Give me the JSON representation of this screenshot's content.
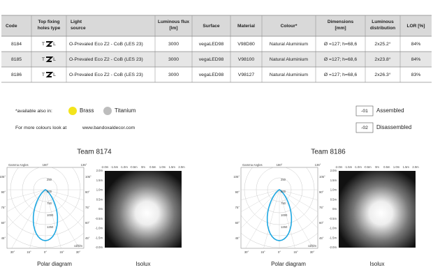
{
  "table": {
    "headers": [
      "Code",
      "Top fixing holes type",
      "Light source",
      "Luminous flux [lm]",
      "Surface",
      "Material",
      "Colour*",
      "Dimensions [mm]",
      "Luminous distribution",
      "LOR [%]"
    ],
    "rows": [
      {
        "code": "8184",
        "fixing": [
          "T",
          "L"
        ],
        "light_source": "O-Prevaled Eco Z2 - CoB (LES 23)",
        "flux": "3000",
        "surface": "vegaLED98",
        "material": "V98D80",
        "colour": "Natural Aluminium",
        "dimensions": "Ø =127; h=68,6",
        "distribution": "2x25.2°",
        "lor": "84%"
      },
      {
        "code": "8185",
        "fixing": [
          "T",
          "L"
        ],
        "light_source": "O-Prevaled Eco Z2 - CoB (LES 23)",
        "flux": "3000",
        "surface": "vegaLED98",
        "material": "V98100",
        "colour": "Natural Aluminium",
        "dimensions": "Ø =127; h=68,6",
        "distribution": "2x23.8°",
        "lor": "84%"
      },
      {
        "code": "8186",
        "fixing": [
          "T",
          "L"
        ],
        "light_source": "O-Prevaled Eco Z2 - CoB (LES 23)",
        "flux": "3000",
        "surface": "vegaLED98",
        "material": "V98127",
        "colour": "Natural Aluminium",
        "dimensions": "Ø =127; h=68,6",
        "distribution": "2x26.3°",
        "lor": "83%"
      }
    ]
  },
  "availability": {
    "label": "*available also in:",
    "options": [
      {
        "name": "Brass",
        "color": "#f3e41c"
      },
      {
        "name": "Titanium",
        "color": "#bdbdbd"
      }
    ]
  },
  "more": {
    "text": "For more colours look at",
    "link": "www.bandoxaldecor.com"
  },
  "versions": [
    {
      "code": "-01",
      "label": "Assembled"
    },
    {
      "code": "-02",
      "label": "Disassembled"
    }
  ],
  "diagrams": [
    {
      "title": "Team 8174",
      "polar": {
        "caption": "Polar diagram",
        "header": [
          "Gamma Angles",
          "180°",
          "135°"
        ],
        "left_angles": [
          "105°",
          "90°",
          "75°",
          "60°",
          "45°"
        ],
        "right_angles": [
          "105°",
          "90°",
          "75°",
          "60°",
          "45°"
        ],
        "bottom_angles": [
          "30°",
          "15°",
          "0°",
          "15°",
          "30°"
        ],
        "radial": [
          "250",
          "500",
          "750",
          "1000",
          "1250"
        ],
        "unit": "cd/klm"
      },
      "isolux": {
        "caption": "Isolux",
        "x_labels": [
          "-2.0m",
          "-1.5m",
          "-1.0m",
          "-0.5m",
          "0m",
          "0.5m",
          "1.0m",
          "1.5m",
          "2.0m"
        ],
        "y_labels": [
          "2.0m",
          "1.5m",
          "1.0m",
          "0.5m",
          "0m",
          "-0.5m",
          "-1.0m",
          "-1.5m",
          "-2.0m"
        ]
      }
    },
    {
      "title": "Team 8186",
      "polar": {
        "caption": "Polar diagram",
        "header": [
          "Gamma Angles",
          "180°",
          "135°"
        ],
        "left_angles": [
          "105°",
          "90°",
          "75°",
          "60°",
          "45°"
        ],
        "right_angles": [
          "105°",
          "90°",
          "75°",
          "60°",
          "45°"
        ],
        "bottom_angles": [
          "30°",
          "15°",
          "0°",
          "15°",
          "30°"
        ],
        "radial": [
          "250",
          "500",
          "750",
          "1000",
          "1250"
        ],
        "unit": "cd/klm"
      },
      "isolux": {
        "caption": "Isolux",
        "x_labels": [
          "-2.0m",
          "-1.5m",
          "-1.0m",
          "-0.5m",
          "0m",
          "0.5m",
          "1.0m",
          "1.5m",
          "2.0m"
        ],
        "y_labels": [
          "2.0m",
          "1.5m",
          "1.0m",
          "0.5m",
          "0m",
          "-0.5m",
          "-1.0m",
          "-1.5m",
          "-2.0m"
        ]
      }
    }
  ]
}
